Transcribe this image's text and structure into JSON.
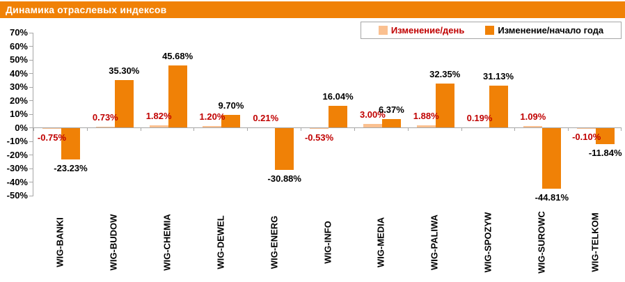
{
  "title": "Динамика отраслевых индексов",
  "colors": {
    "title_bg": "#F08106",
    "title_text": "#FFFFFF",
    "axis": "#A6A6A6",
    "day_label_text": "#C00000",
    "ytd_label_text": "#000000"
  },
  "chart_data": {
    "type": "bar",
    "title": "Динамика отраслевых индексов",
    "categories": [
      "WIG-BANKI",
      "WIG-BUDOW",
      "WIG-CHEMIA",
      "WIG-DEWEL",
      "WIG-ENERG",
      "WIG-INFO",
      "WIG-MEDIA",
      "WIG-PALIWA",
      "WIG-SPOZYW",
      "WIG-SUROWC",
      "WIG-TELKOM"
    ],
    "series": [
      {
        "name": "Изменение/день",
        "color": "#FAC090",
        "label_color": "#C00000",
        "values": [
          -0.75,
          0.73,
          1.82,
          1.2,
          0.21,
          -0.53,
          3.0,
          1.88,
          0.19,
          1.09,
          -0.1
        ],
        "labels": [
          "-0.75%",
          "0.73%",
          "1.82%",
          "1.20%",
          "0.21%",
          "-0.53%",
          "3.00%",
          "1.88%",
          "0.19%",
          "1.09%",
          "-0.10%"
        ]
      },
      {
        "name": "Изменение/начало года",
        "color": "#F08106",
        "label_color": "#000000",
        "values": [
          -23.23,
          35.3,
          45.68,
          9.7,
          -30.88,
          16.04,
          6.37,
          32.35,
          31.13,
          -44.81,
          -11.84
        ],
        "labels": [
          "-23.23%",
          "35.30%",
          "45.68%",
          "9.70%",
          "-30.88%",
          "16.04%",
          "6.37%",
          "32.35%",
          "31.13%",
          "-44.81%",
          "-11.84%"
        ]
      }
    ],
    "xlabel": "",
    "ylabel": "",
    "ylim": [
      -50,
      70
    ],
    "ytick_step": 10,
    "ytick_suffix": "%",
    "grid": false,
    "legend_position": "top-right",
    "axis_color": "#A6A6A6"
  }
}
